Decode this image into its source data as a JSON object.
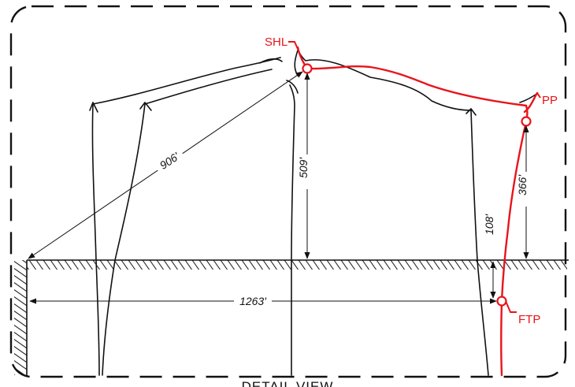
{
  "colors": {
    "line": "#111111",
    "wellbore": "#e8141b",
    "background": "#ffffff"
  },
  "points": {
    "shl": "SHL",
    "pp": "PP",
    "ftp": "FTP"
  },
  "dimensions": {
    "diagonal": "906'",
    "shl_vertical": "509'",
    "pp_vertical": "366'",
    "ftp_offset": "108'",
    "horizontal": "1263'"
  },
  "title": "DETAIL VIEW"
}
